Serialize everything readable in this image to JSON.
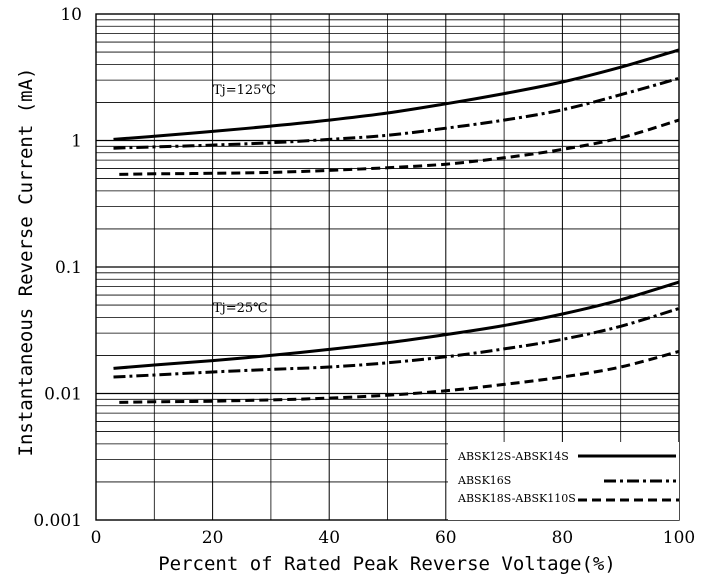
{
  "chart_data": {
    "type": "line",
    "xlabel": "Percent of Rated Peak Reverse Voltage(%)",
    "ylabel": "Instantaneous  Reverse Current (mA)",
    "xlim": [
      0,
      100
    ],
    "ylim": [
      0.001,
      10
    ],
    "yscale": "log",
    "xticks": [
      "0",
      "20",
      "40",
      "60",
      "80",
      "100"
    ],
    "yticks": [
      "0.001",
      "0.01",
      "0.1",
      "1",
      "10"
    ],
    "grid": true,
    "legend_position": "bottom-right",
    "legend": [
      "ABSK12S-ABSK14S",
      "ABSK16S",
      "ABSK18S-ABSK110S"
    ],
    "annotations": [
      "Tj=125℃",
      "Tj=25℃"
    ],
    "series": [
      {
        "name": "ABSK12S-ABSK14S",
        "group": "Tj=125℃",
        "style": "solid",
        "x": [
          3,
          10,
          20,
          30,
          40,
          50,
          60,
          70,
          80,
          90,
          100
        ],
        "y": [
          1.02,
          1.08,
          1.18,
          1.3,
          1.45,
          1.65,
          1.95,
          2.35,
          2.9,
          3.8,
          5.2
        ]
      },
      {
        "name": "ABSK16S",
        "group": "Tj=125℃",
        "style": "dashdot",
        "x": [
          3,
          10,
          20,
          30,
          40,
          50,
          60,
          70,
          80,
          90,
          100
        ],
        "y": [
          0.87,
          0.89,
          0.92,
          0.96,
          1.02,
          1.1,
          1.25,
          1.45,
          1.75,
          2.3,
          3.1
        ]
      },
      {
        "name": "ABSK18S-ABSK110S",
        "group": "Tj=125℃",
        "style": "dashed",
        "x": [
          4,
          10,
          20,
          30,
          40,
          50,
          60,
          70,
          80,
          90,
          100
        ],
        "y": [
          0.54,
          0.545,
          0.55,
          0.56,
          0.58,
          0.61,
          0.65,
          0.73,
          0.85,
          1.05,
          1.45
        ]
      },
      {
        "name": "ABSK12S-ABSK14S",
        "group": "Tj=25℃",
        "style": "solid",
        "x": [
          3,
          10,
          20,
          30,
          40,
          50,
          60,
          70,
          80,
          90,
          100
        ],
        "y": [
          0.0158,
          0.0168,
          0.0182,
          0.02,
          0.0223,
          0.0252,
          0.0292,
          0.0345,
          0.0425,
          0.055,
          0.076
        ]
      },
      {
        "name": "ABSK16S",
        "group": "Tj=25℃",
        "style": "dashdot",
        "x": [
          3,
          10,
          20,
          30,
          40,
          50,
          60,
          70,
          80,
          90,
          100
        ],
        "y": [
          0.0135,
          0.014,
          0.0148,
          0.0155,
          0.0162,
          0.0175,
          0.0195,
          0.0225,
          0.0268,
          0.034,
          0.047
        ]
      },
      {
        "name": "ABSK18S-ABSK110S",
        "group": "Tj=25℃",
        "style": "dashed",
        "x": [
          4,
          10,
          20,
          30,
          40,
          50,
          60,
          70,
          80,
          90,
          100
        ],
        "y": [
          0.0085,
          0.0086,
          0.0087,
          0.0089,
          0.0092,
          0.0097,
          0.0105,
          0.0118,
          0.0135,
          0.0162,
          0.0215
        ]
      }
    ]
  }
}
